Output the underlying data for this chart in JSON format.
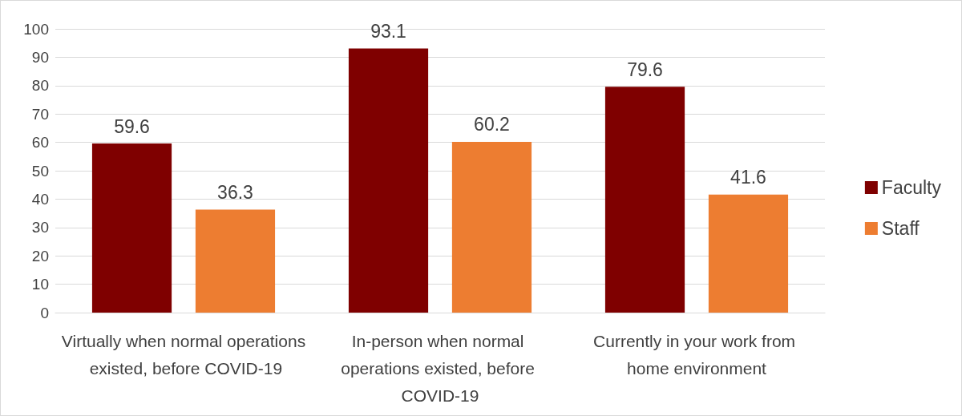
{
  "chart_data": {
    "type": "bar",
    "categories": [
      "Virtually when normal operations existed, before COVID-19",
      "In-person when normal operations existed, before COVID-19",
      "Currently in your work from home environment"
    ],
    "series": [
      {
        "name": "Faculty",
        "color": "#7f0000",
        "values": [
          59.6,
          93.1,
          79.6
        ]
      },
      {
        "name": "Staff",
        "color": "#ed7d31",
        "values": [
          36.3,
          60.2,
          41.6
        ]
      }
    ],
    "ylim": [
      0,
      100
    ],
    "yticks": [
      0,
      10,
      20,
      30,
      40,
      50,
      60,
      70,
      80,
      90,
      100
    ],
    "grid": "y",
    "legend": "right",
    "data_labels": true
  }
}
